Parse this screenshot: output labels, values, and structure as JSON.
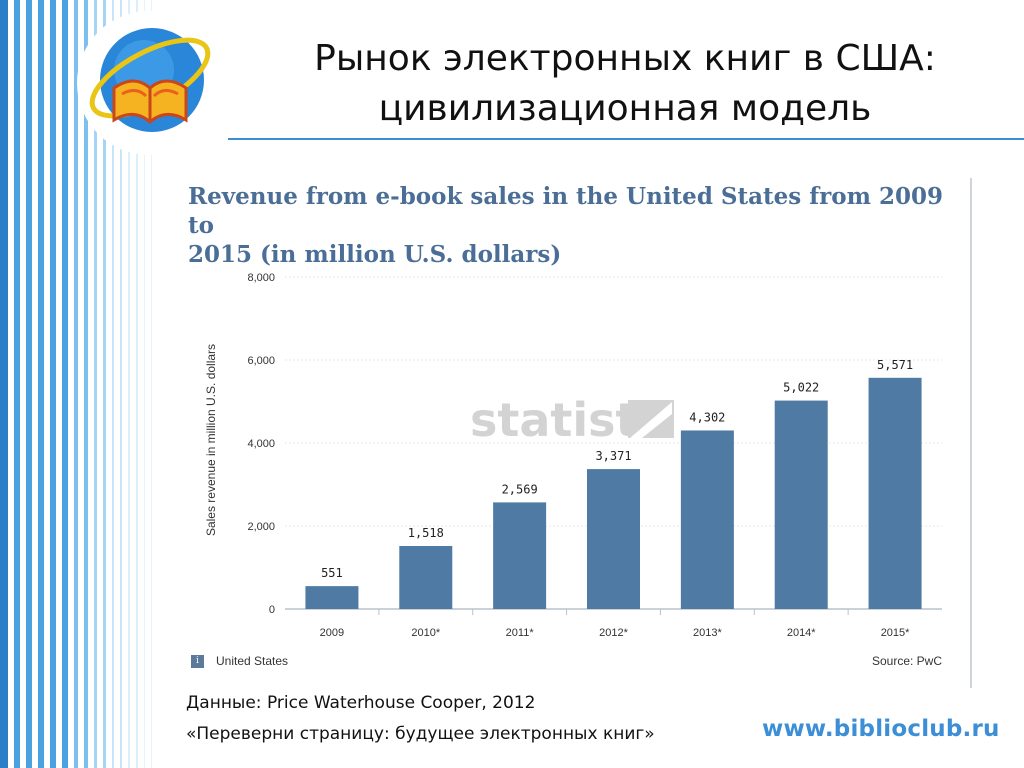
{
  "slide": {
    "title_line1": "Рынок электронных книг в США:",
    "title_line2": "цивилизационная модель",
    "source_line1": "Данные: Price Waterhouse Cooper, 2012",
    "source_line2": "«Переверни страницу: будущее электронных книг»",
    "site": "www.biblioclub.ru"
  },
  "colors": {
    "bar": "#4f7aa3",
    "stripe": "#4aa3e0",
    "title_blue": "#4b6e96",
    "accent": "#3c8fd6"
  },
  "watermark": {
    "text": "statista"
  },
  "chart_footer": {
    "region": "United States",
    "info_icon": "i",
    "source": "Source: PwC"
  },
  "chart_data": {
    "type": "bar",
    "title_line1": "Revenue from e-book sales in the United States from 2009 to",
    "title_line2": "2015 (in million U.S. dollars)",
    "xlabel": "",
    "ylabel": "Sales revenue in million U.S. dollars",
    "categories": [
      "2009",
      "2010*",
      "2011*",
      "2012*",
      "2013*",
      "2014*",
      "2015*"
    ],
    "values": [
      551,
      1518,
      2569,
      3371,
      4302,
      5022,
      5571
    ],
    "value_labels": [
      "551",
      "1,518",
      "2,569",
      "3,371",
      "4,302",
      "5,022",
      "5,571"
    ],
    "ylim": [
      0,
      8000
    ],
    "yticks": [
      0,
      2000,
      4000,
      6000,
      8000
    ],
    "ytick_labels": [
      "0",
      "2,000",
      "4,000",
      "6,000",
      "8,000"
    ],
    "grid": true,
    "legend": "none"
  }
}
